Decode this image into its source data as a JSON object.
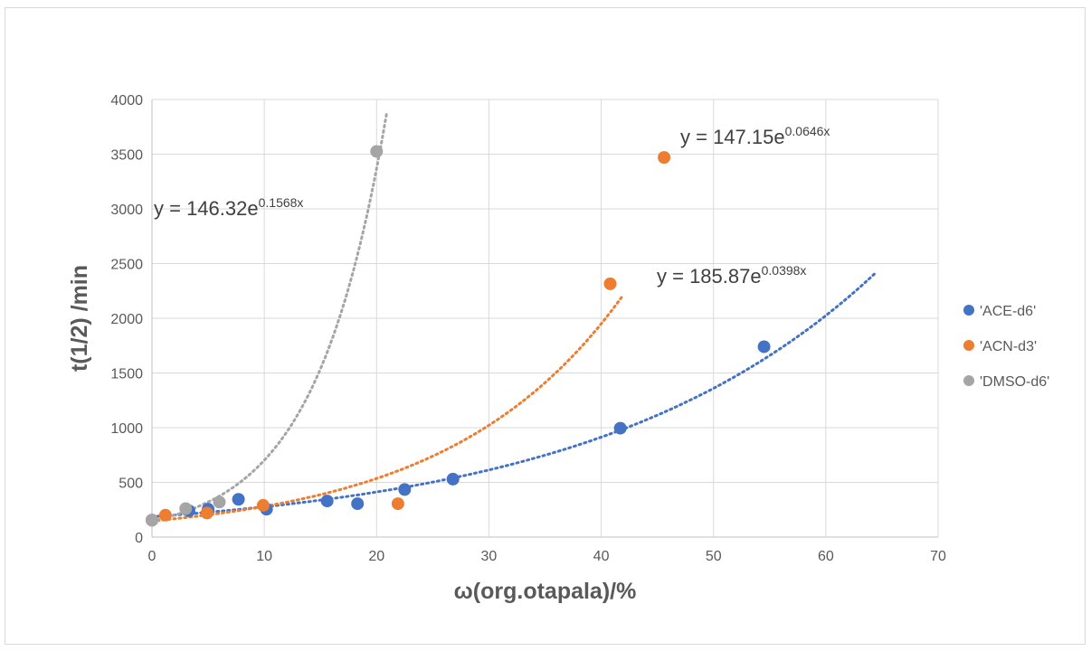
{
  "chart_data": {
    "type": "scatter",
    "title": "",
    "xlabel": "ω(org.otapala)/%",
    "ylabel": "t(1/2) /min",
    "xlim": [
      0,
      70
    ],
    "ylim": [
      0,
      4000
    ],
    "xticks": [
      0,
      10,
      20,
      30,
      40,
      50,
      60,
      70
    ],
    "yticks": [
      0,
      500,
      1000,
      1500,
      2000,
      2500,
      3000,
      3500,
      4000
    ],
    "grid": true,
    "legend_position": "right",
    "series": [
      {
        "name": "'ACE-d6'",
        "color": "#4472C4",
        "x": [
          0,
          3.3,
          5,
          7.7,
          10.2,
          15.6,
          18.3,
          22.5,
          26.8,
          41.7,
          54.5
        ],
        "y": [
          155,
          240,
          255,
          345,
          255,
          330,
          305,
          435,
          530,
          995,
          1740
        ],
        "trendline": {
          "type": "exponential",
          "a": 185.87,
          "b": 0.0398,
          "x_range": [
            0,
            64.5
          ],
          "equation": "y = 185.87e",
          "exponent": "0.0398x"
        }
      },
      {
        "name": "'ACN-d3'",
        "color": "#ED7D31",
        "x": [
          0,
          1.2,
          4.9,
          9.9,
          21.9,
          40.8,
          45.6
        ],
        "y": [
          155,
          200,
          220,
          290,
          305,
          2315,
          3470
        ],
        "trendline": {
          "type": "exponential",
          "a": 147.15,
          "b": 0.0646,
          "x_range": [
            0,
            41.8
          ],
          "equation": "y = 147.15e",
          "exponent": "0.0646x"
        }
      },
      {
        "name": "'DMSO-d6'",
        "color": "#A5A5A5",
        "x": [
          0,
          3.0,
          6.0,
          20.0
        ],
        "y": [
          155,
          260,
          320,
          3525
        ],
        "trendline": {
          "type": "exponential",
          "a": 146.32,
          "b": 0.1568,
          "x_range": [
            0,
            20.9
          ],
          "equation": "y = 146.32e",
          "exponent": "0.1568x"
        }
      }
    ]
  }
}
